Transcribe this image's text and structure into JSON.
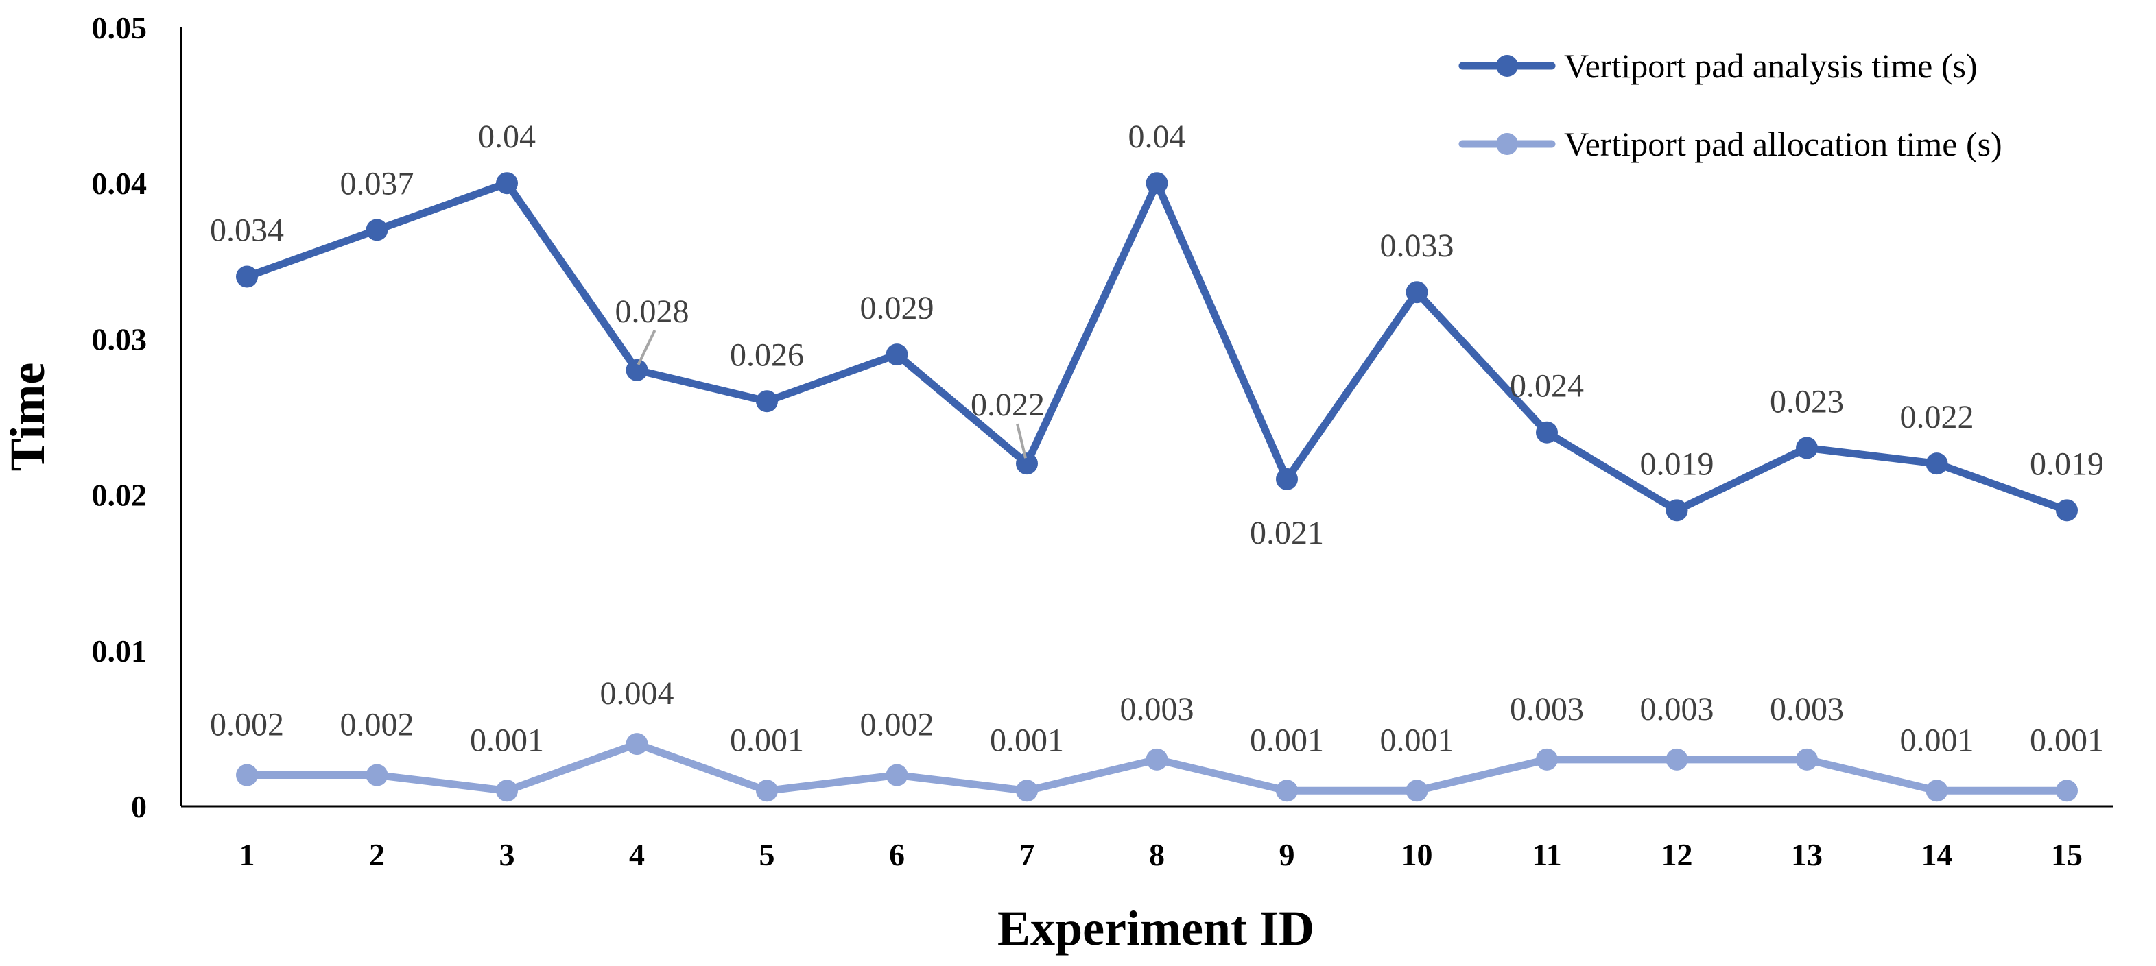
{
  "chart_data": {
    "type": "line",
    "title": "",
    "xlabel": "Experiment ID",
    "ylabel": "Time",
    "ylim": [
      0,
      0.05
    ],
    "yticks": [
      "0",
      "0.01",
      "0.02",
      "0.03",
      "0.04",
      "0.05"
    ],
    "categories": [
      "1",
      "2",
      "3",
      "4",
      "5",
      "6",
      "7",
      "8",
      "9",
      "10",
      "11",
      "12",
      "13",
      "14",
      "15"
    ],
    "grid": false,
    "legend_position": "top-right",
    "series": [
      {
        "name": "Vertiport pad analysis time (s)",
        "color": "#3D63AE",
        "values": [
          0.034,
          0.037,
          0.04,
          0.028,
          0.026,
          0.029,
          0.022,
          0.04,
          0.021,
          0.033,
          0.024,
          0.019,
          0.023,
          0.022,
          0.019
        ],
        "labels": [
          "0.034",
          "0.037",
          "0.04",
          "0.028",
          "0.026",
          "0.029",
          "0.022",
          "0.04",
          "0.021",
          "0.033",
          "0.024",
          "0.019",
          "0.023",
          "0.022",
          "0.019"
        ]
      },
      {
        "name": "Vertiport pad allocation time (s)",
        "color": "#8FA4D6",
        "values": [
          0.002,
          0.002,
          0.001,
          0.004,
          0.001,
          0.002,
          0.001,
          0.003,
          0.001,
          0.001,
          0.003,
          0.003,
          0.003,
          0.001,
          0.001
        ],
        "labels": [
          "0.002",
          "0.002",
          "0.001",
          "0.004",
          "0.001",
          "0.002",
          "0.001",
          "0.003",
          "0.001",
          "0.001",
          "0.003",
          "0.003",
          "0.003",
          "0.001",
          "0.001"
        ]
      }
    ]
  }
}
